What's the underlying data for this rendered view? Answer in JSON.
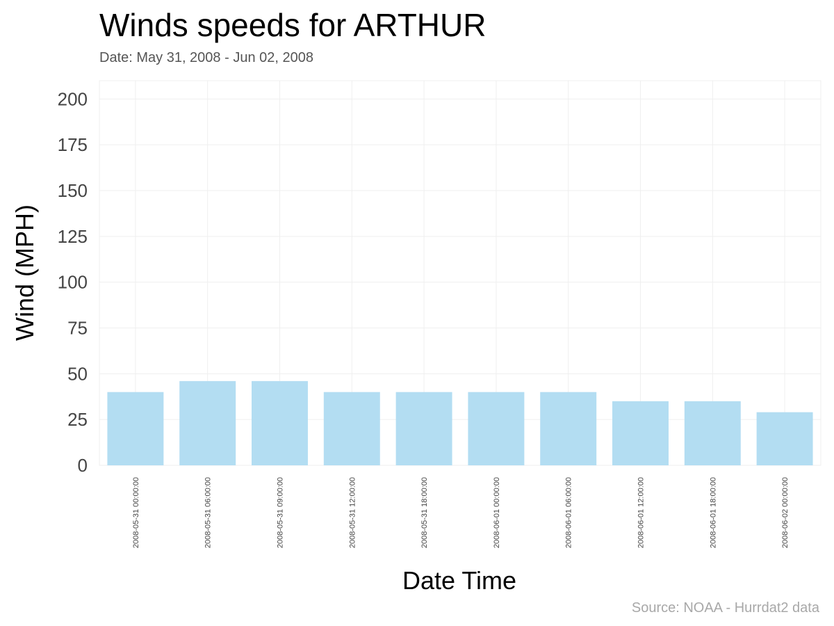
{
  "chart_data": {
    "type": "bar",
    "title": "Winds speeds for ARTHUR",
    "subtitle": "Date:  May 31, 2008 - Jun 02, 2008",
    "xlabel": "Date Time",
    "ylabel": "Wind (MPH)",
    "caption": "Source: NOAA - Hurrdat2 data",
    "categories": [
      "2008-05-31 00:00:00",
      "2008-05-31 06:00:00",
      "2008-05-31 09:00:00",
      "2008-05-31 12:00:00",
      "2008-05-31 18:00:00",
      "2008-06-01 00:00:00",
      "2008-06-01 06:00:00",
      "2008-06-01 12:00:00",
      "2008-06-01 18:00:00",
      "2008-06-02 00:00:00"
    ],
    "values": [
      40,
      46,
      46,
      40,
      40,
      40,
      40,
      35,
      35,
      29
    ],
    "ylim": [
      0,
      210
    ],
    "yticks": [
      0,
      25,
      50,
      75,
      100,
      125,
      150,
      175,
      200
    ],
    "grid": true,
    "legend": false,
    "bar_color": "#b3ddf2",
    "text_color": "#000000",
    "tick_color": "#444444",
    "caption_color": "#a8a8a8",
    "grid_color": "#efefef"
  }
}
